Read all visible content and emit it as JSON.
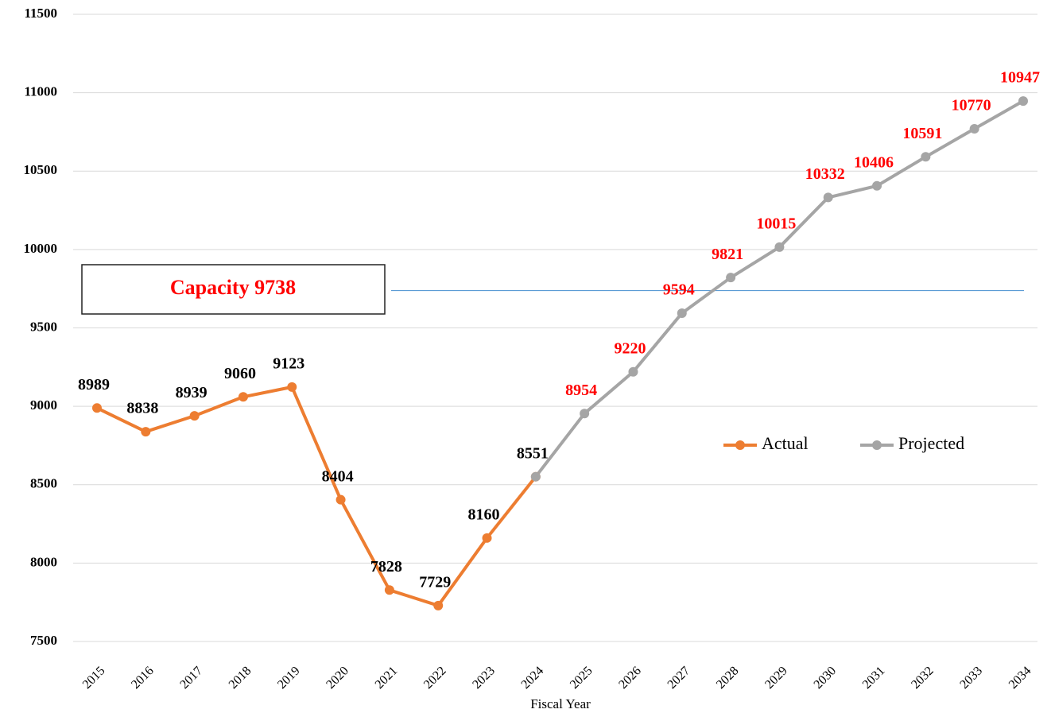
{
  "chart_data": {
    "type": "line",
    "x_label": "Fiscal Year",
    "categories": [
      "2015",
      "2016",
      "2017",
      "2018",
      "2019",
      "2020",
      "2021",
      "2022",
      "2023",
      "2024",
      "2025",
      "2026",
      "2027",
      "2028",
      "2029",
      "2030",
      "2031",
      "2032",
      "2033",
      "2034"
    ],
    "series": [
      {
        "name": "Actual",
        "color": "#ed7d31",
        "label_color": "#000000",
        "values": [
          8989,
          8838,
          8939,
          9060,
          9123,
          8404,
          7828,
          7729,
          8160,
          8551,
          null,
          null,
          null,
          null,
          null,
          null,
          null,
          null,
          null,
          null
        ]
      },
      {
        "name": "Projected",
        "color": "#a5a5a5",
        "label_color": "#ff0000",
        "values": [
          null,
          null,
          null,
          null,
          null,
          null,
          null,
          null,
          null,
          8551,
          8954,
          9220,
          9594,
          9821,
          10015,
          10332,
          10406,
          10591,
          10770,
          10947
        ]
      }
    ],
    "annotation": {
      "text": "Capacity 9738",
      "value": 9738,
      "color": "#5b9bd5"
    },
    "ylim": [
      7500,
      11500
    ],
    "yticks": [
      7500,
      8000,
      8500,
      9000,
      9500,
      10000,
      10500,
      11000,
      11500
    ],
    "grid": true
  }
}
